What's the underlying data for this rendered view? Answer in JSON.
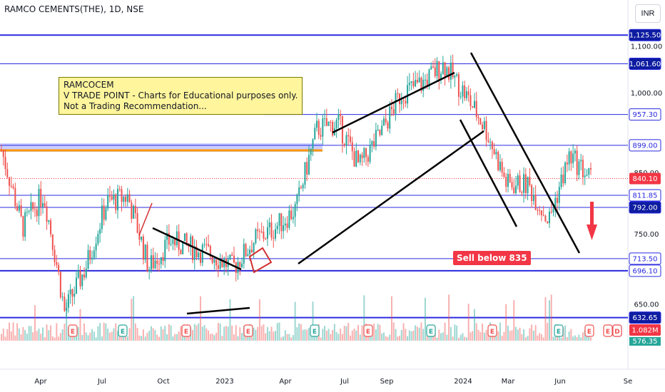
{
  "header": {
    "symbol_title": "RAMCO CEMENTS(THE), 1D, NSE",
    "currency": "INR"
  },
  "note": {
    "line1": "RAMCOCEM",
    "line2": "V TRADE POINT - Charts for Educational purposes only.",
    "line3": "Not a Trading Recommendation..."
  },
  "sell_label": "Sell below 835",
  "colors": {
    "up": "#26a69a",
    "down": "#ef5350",
    "level_line": "#2a2ae0",
    "resistance_zone": "#ff9800",
    "trendline": "#000000",
    "price_tag": "#2a2ae0",
    "last_price": "#f23645",
    "arrow": "#f23645"
  },
  "chart_data": {
    "type": "candlestick",
    "title": "RAMCO CEMENTS(THE), 1D, NSE",
    "x_ticks": [
      "Apr",
      "Jul",
      "Oct",
      "2023",
      "Apr",
      "Jul",
      "Sep",
      "2024",
      "Mar",
      "Jun",
      "Se"
    ],
    "y_ticks": [
      "1,100.00",
      "1,000.00",
      "850.00",
      "750.00",
      "650.00"
    ],
    "y_scale": "log",
    "horizontal_levels": [
      "1,125.50",
      "1,061.60",
      "957.30",
      "899.00",
      "811.85",
      "792.00",
      "713.50",
      "696.10",
      "632.65"
    ],
    "last_price": "840.10",
    "volume_label": "1.082M",
    "bottom_tag": "576.35",
    "event_markers": [
      "E",
      "E",
      "E",
      "E",
      "E",
      "E",
      "E",
      "E",
      "E",
      "E",
      "E",
      "E",
      "D"
    ],
    "price_path": [
      {
        "t": "Mar 2022",
        "p": 890
      },
      {
        "t": "Apr 2022",
        "p": 760
      },
      {
        "t": "May 2022",
        "p": 815
      },
      {
        "t": "Jun 2022",
        "p": 640
      },
      {
        "t": "Jul 2022",
        "p": 700
      },
      {
        "t": "Aug 2022",
        "p": 800
      },
      {
        "t": "Sep 2022",
        "p": 810
      },
      {
        "t": "Oct 2022",
        "p": 700
      },
      {
        "t": "Nov 2022",
        "p": 740
      },
      {
        "t": "Dec 2022",
        "p": 730
      },
      {
        "t": "Jan 2023",
        "p": 720
      },
      {
        "t": "Feb 2023",
        "p": 700
      },
      {
        "t": "Mar 2023",
        "p": 740
      },
      {
        "t": "Apr 2023",
        "p": 760
      },
      {
        "t": "May 2023",
        "p": 790
      },
      {
        "t": "Jun 2023",
        "p": 930
      },
      {
        "t": "Jul 2023",
        "p": 940
      },
      {
        "t": "Aug 2023",
        "p": 860
      },
      {
        "t": "Sep 2023",
        "p": 920
      },
      {
        "t": "Oct 2023",
        "p": 1000
      },
      {
        "t": "Nov 2023",
        "p": 1020
      },
      {
        "t": "Dec 2023",
        "p": 1060
      },
      {
        "t": "Jan 2024",
        "p": 1000
      },
      {
        "t": "Feb 2024",
        "p": 930
      },
      {
        "t": "Mar 2024",
        "p": 830
      },
      {
        "t": "Apr 2024",
        "p": 830
      },
      {
        "t": "May 2024",
        "p": 770
      },
      {
        "t": "Jun 2024",
        "p": 880
      },
      {
        "t": "Jul 2024",
        "p": 840
      }
    ]
  }
}
